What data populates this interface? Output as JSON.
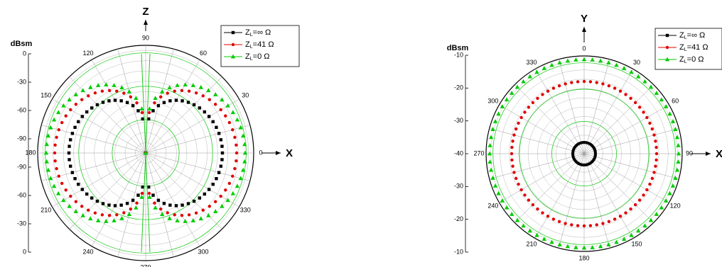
{
  "chart_data": [
    {
      "type": "polar",
      "radial_unit": "dBsm",
      "radial_ticks": [
        "0",
        "-30",
        "-60",
        "-90",
        "-90",
        "-60",
        "-30",
        "0"
      ],
      "angle_labels": [
        "0",
        "30",
        "60",
        "90",
        "120",
        "150",
        "180",
        "210",
        "240",
        "270",
        "300",
        "330"
      ],
      "axis_up_label": "Z",
      "axis_right_label": "X",
      "legend": [
        "Z",
        "=∞ Ω",
        "Z",
        "=41  Ω",
        "Z",
        "=0    Ω"
      ],
      "series": [
        {
          "name": "ZL=∞ Ω",
          "color": "#000000",
          "marker": "square",
          "pattern": "dipole",
          "peak_dBsm": -50
        },
        {
          "name": "ZL=41 Ω",
          "color": "#e00000",
          "marker": "circle",
          "pattern": "dipole",
          "peak_dBsm": -35
        },
        {
          "name": "ZL=0 Ω",
          "color": "#00cc00",
          "marker": "triangle",
          "pattern": "dipole",
          "peak_dBsm": -28
        }
      ],
      "grid": true
    },
    {
      "type": "polar",
      "radial_unit": "dBsm",
      "radial_ticks": [
        "-10",
        "-20",
        "-30",
        "-40",
        "-30",
        "-20",
        "-10"
      ],
      "angle_labels": [
        "0",
        "30",
        "60",
        "90",
        "120",
        "150",
        "180",
        "210",
        "240",
        "270",
        "300",
        "330"
      ],
      "axis_up_label": "Y",
      "axis_right_label": "X",
      "legend": [
        "Z",
        "=∞ Ω",
        "Z",
        "=41 Ω",
        "Z",
        "=0   Ω"
      ],
      "series": [
        {
          "name": "ZL=∞ Ω",
          "color": "#000000",
          "marker": "square",
          "pattern": "omni",
          "level_dBsm": -38
        },
        {
          "name": "ZL=41 Ω",
          "color": "#e00000",
          "marker": "circle",
          "pattern": "omni",
          "level_dBsm": -17
        },
        {
          "name": "ZL=0 Ω",
          "color": "#00cc00",
          "marker": "triangle",
          "pattern": "omni",
          "level_dBsm": -10
        }
      ],
      "grid": true
    }
  ]
}
